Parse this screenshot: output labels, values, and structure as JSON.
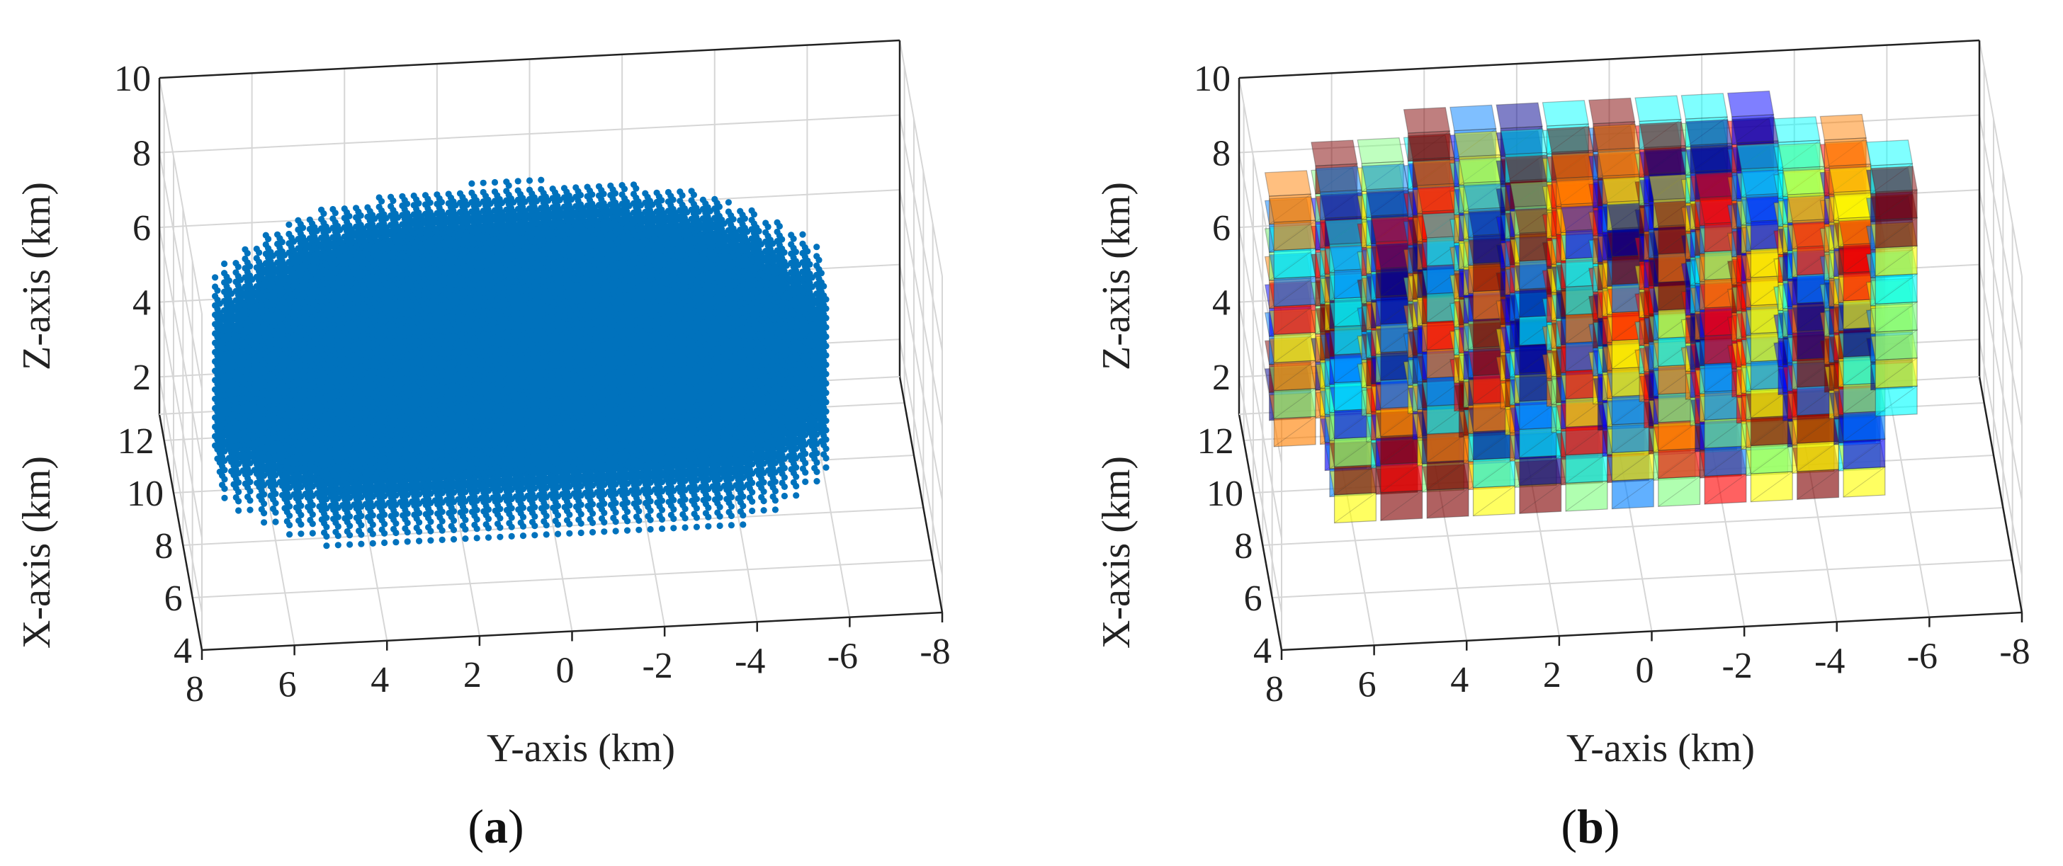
{
  "chart_data": [
    {
      "type": "scatter",
      "panel": "a",
      "caption": "a",
      "projection": "3d",
      "description_marker": "filled blue dots on a regular 3D lattice",
      "marker_color": "#0072BD",
      "xlabel": "Y-axis (km)",
      "ylabel": "X-axis (km)",
      "zlabel": "Z-axis (km)",
      "xlim": [
        8,
        -8
      ],
      "ylim": [
        4,
        13
      ],
      "zlim": [
        1,
        10
      ],
      "xticks": [
        "8",
        "6",
        "4",
        "2",
        "0",
        "-2",
        "-4",
        "-6",
        "-8"
      ],
      "yticks": [
        "4",
        "6",
        "8",
        "10",
        "12"
      ],
      "zticks": [
        "2",
        "4",
        "6",
        "8",
        "10"
      ],
      "grid": true,
      "point_cloud": {
        "y_range": [
          -6,
          7
        ],
        "x_range": [
          7,
          13
        ],
        "z_range": [
          1.5,
          7.5
        ],
        "step": 0.25
      }
    },
    {
      "type": "bar3d",
      "panel": "b",
      "caption": "b",
      "projection": "3d",
      "description_marker": "semi-transparent colored voxel columns (jet colormap)",
      "xlabel": "Y-axis (km)",
      "ylabel": "X-axis (km)",
      "zlabel": "Z-axis (km)",
      "xlim": [
        8,
        -8
      ],
      "ylim": [
        4,
        13
      ],
      "zlim": [
        1,
        10
      ],
      "xticks": [
        "8",
        "6",
        "4",
        "2",
        "0",
        "-2",
        "-4",
        "-6",
        "-8"
      ],
      "yticks": [
        "4",
        "6",
        "8",
        "10",
        "12"
      ],
      "zticks": [
        "2",
        "4",
        "6",
        "8",
        "10"
      ],
      "grid": true,
      "colormap": [
        "#00008f",
        "#0000ff",
        "#0080ff",
        "#00ffff",
        "#80ff80",
        "#ffff00",
        "#ff8000",
        "#ff0000",
        "#800000"
      ],
      "voxel_columns_y": [
        7,
        6,
        5,
        4,
        3,
        2,
        1,
        0,
        -1,
        -2,
        -3,
        -4,
        -5,
        -6
      ]
    }
  ],
  "captions": {
    "a": "a",
    "b": "b"
  }
}
